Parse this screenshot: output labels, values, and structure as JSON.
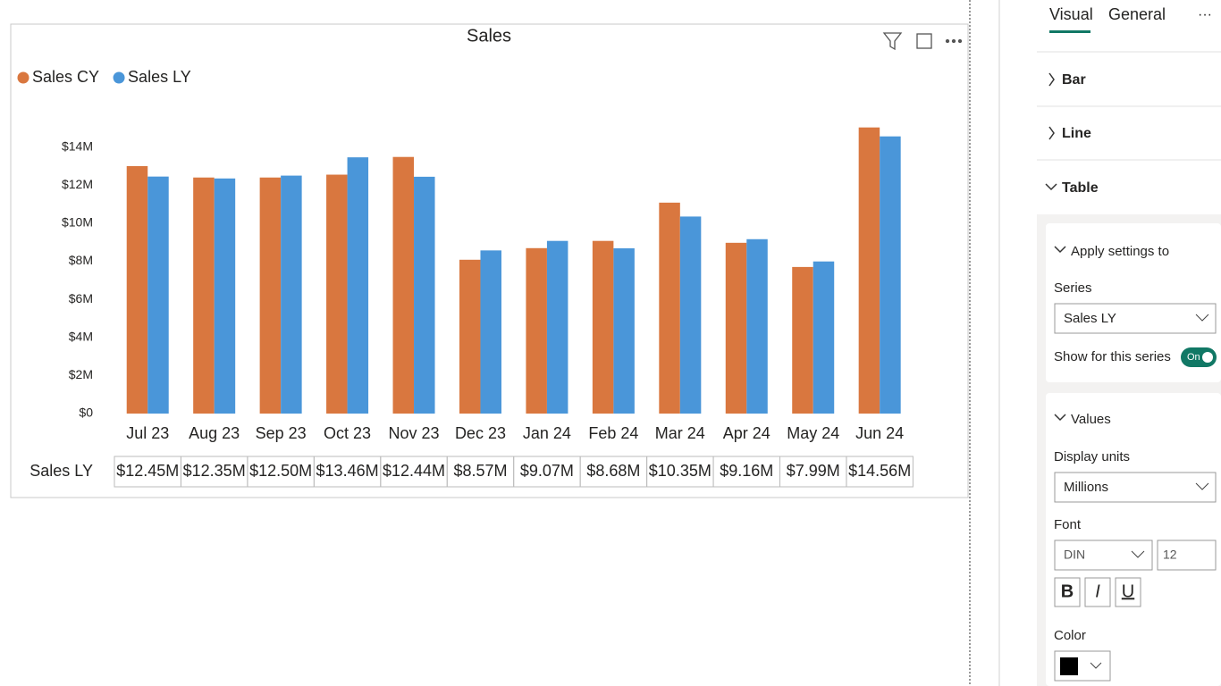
{
  "chart_data": {
    "type": "bar",
    "title": "Sales",
    "categories": [
      "Jul 23",
      "Aug 23",
      "Sep 23",
      "Oct 23",
      "Nov 23",
      "Dec 23",
      "Jan 24",
      "Feb 24",
      "Mar 24",
      "Apr 24",
      "May 24",
      "Jun 24"
    ],
    "series": [
      {
        "name": "Sales CY",
        "color": "#d9773f",
        "values": [
          13000000,
          12400000,
          12400000,
          12550000,
          13480000,
          8080000,
          8690000,
          9070000,
          11080000,
          8970000,
          7700000,
          15030000
        ]
      },
      {
        "name": "Sales LY",
        "color": "#4a96d9",
        "values": [
          12450000,
          12350000,
          12500000,
          13460000,
          12440000,
          8570000,
          9070000,
          8680000,
          10350000,
          9160000,
          7990000,
          14560000
        ],
        "value_labels": [
          "$12.45M",
          "$12.35M",
          "$12.50M",
          "$13.46M",
          "$12.44M",
          "$8.57M",
          "$9.07M",
          "$8.68M",
          "$10.35M",
          "$9.16M",
          "$7.99M",
          "$14.56M"
        ]
      }
    ],
    "ylim": [
      0,
      16000000
    ],
    "yticks": [
      {
        "value": 0,
        "label": "$0"
      },
      {
        "value": 2000000,
        "label": "$2M"
      },
      {
        "value": 4000000,
        "label": "$4M"
      },
      {
        "value": 6000000,
        "label": "$6M"
      },
      {
        "value": 8000000,
        "label": "$8M"
      },
      {
        "value": 10000000,
        "label": "$10M"
      },
      {
        "value": 12000000,
        "label": "$12M"
      },
      {
        "value": 14000000,
        "label": "$14M"
      }
    ],
    "grid": false,
    "legend": "top-left"
  },
  "format_pane": {
    "tabs": [
      "Visual",
      "General"
    ],
    "more": "···",
    "sections": [
      "Bar",
      "Line",
      "Table"
    ],
    "apply_settings": {
      "title": "Apply settings to",
      "series_label": "Series",
      "series_value": "Sales LY",
      "show_label": "Show for this series",
      "toggle": "On"
    },
    "values": {
      "title": "Values",
      "display_units_label": "Display units",
      "display_units": "Millions",
      "font_label": "Font",
      "font": "DIN",
      "font_size": "12",
      "bold": "B",
      "italic": "I",
      "underline": "U",
      "color_label": "Color"
    }
  }
}
